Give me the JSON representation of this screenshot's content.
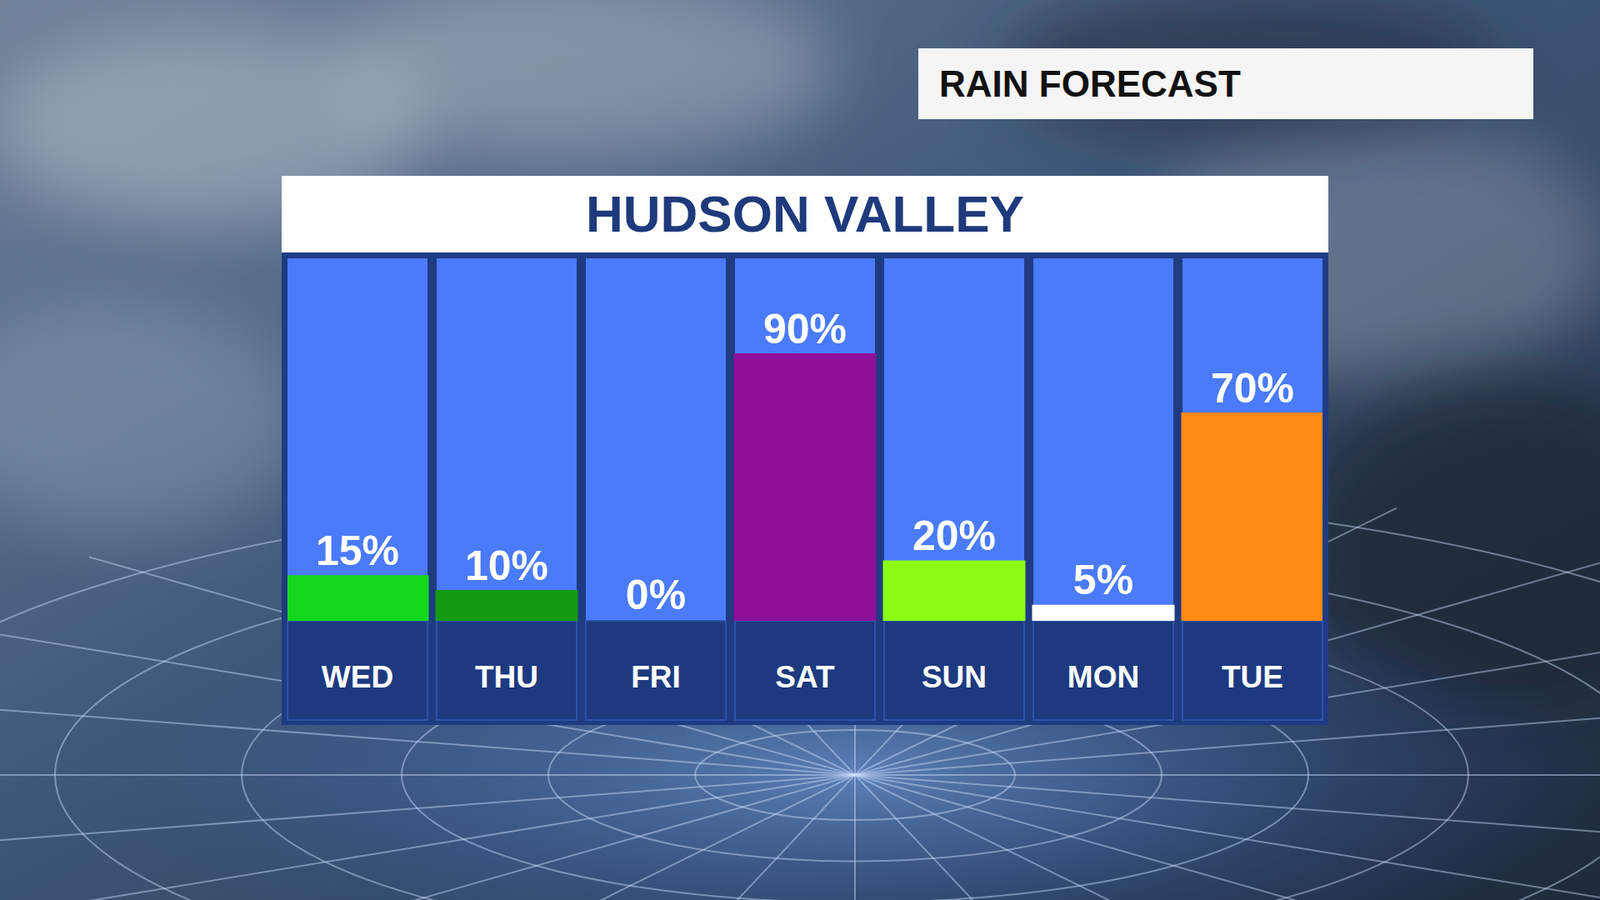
{
  "chart_data": {
    "type": "bar",
    "subtitle": "RAIN FORECAST",
    "title": "HUDSON VALLEY",
    "categories": [
      "WED",
      "THU",
      "FRI",
      "SAT",
      "SUN",
      "MON",
      "TUE"
    ],
    "values": [
      15,
      10,
      0,
      90,
      20,
      5,
      70
    ],
    "value_labels": [
      "15%",
      "10%",
      "0%",
      "90%",
      "20%",
      "5%",
      "70%"
    ],
    "colors": [
      "#14d81c",
      "#139c13",
      "#ffffff",
      "#8e0f9a",
      "#8afc14",
      "#ffffff",
      "#ff8a12"
    ],
    "ylim": [
      0,
      100
    ],
    "data_labels": true,
    "tick_labels": "x",
    "grid": false
  }
}
